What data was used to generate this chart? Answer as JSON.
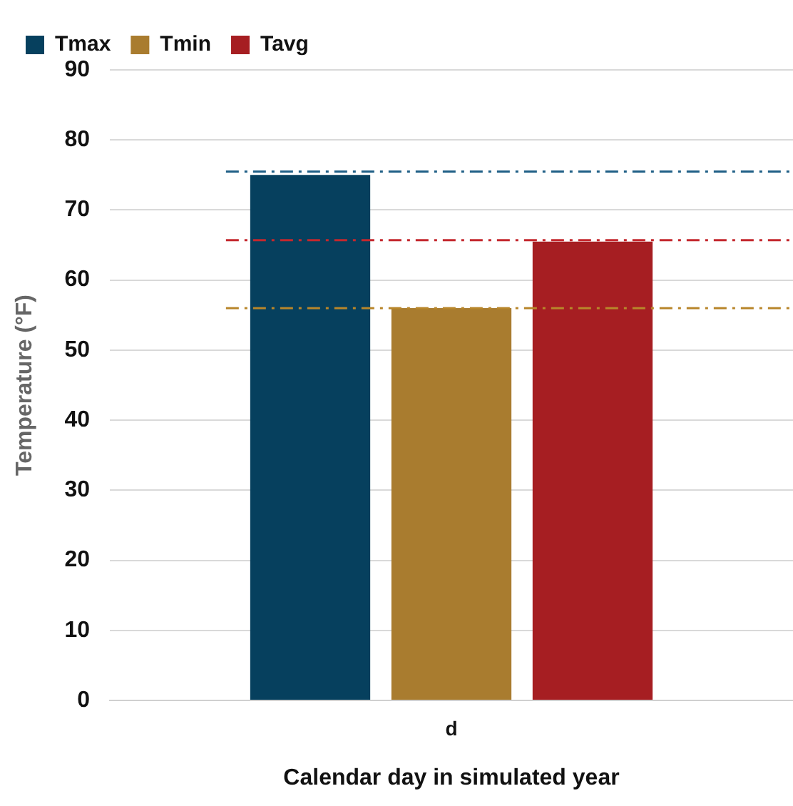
{
  "chart_data": {
    "type": "bar",
    "xlabel": "Calendar day in simulated year",
    "ylabel": "Temperature (°F)",
    "categories": [
      "d"
    ],
    "series": [
      {
        "name": "Tmax",
        "color": "#06405e",
        "values": [
          75
        ]
      },
      {
        "name": "Tmin",
        "color": "#a97c2f",
        "values": [
          56
        ]
      },
      {
        "name": "Tavg",
        "color": "#a61e22",
        "values": [
          65.5
        ]
      }
    ],
    "ylim": [
      0,
      90
    ],
    "yticks": [
      0,
      10,
      20,
      30,
      40,
      50,
      60,
      70,
      80,
      90
    ],
    "grid": "y",
    "legend": "top",
    "ref_lines": [
      {
        "axis": "y",
        "value": 75.5,
        "color": "#1f5f86",
        "line_style": "dashed"
      },
      {
        "axis": "y",
        "value": 65.7,
        "color": "#c4282e",
        "line_style": "dashed"
      },
      {
        "axis": "y",
        "value": 56,
        "color": "#b8862a",
        "line_style": "dashed"
      }
    ]
  }
}
